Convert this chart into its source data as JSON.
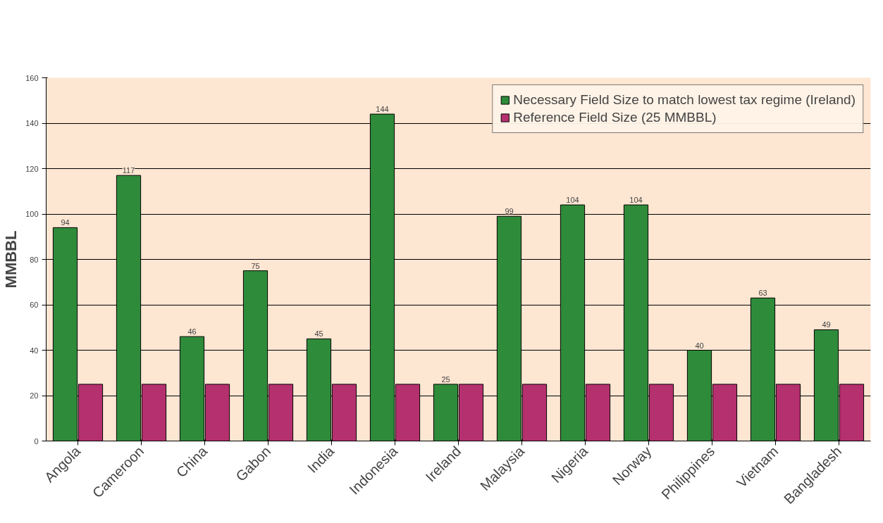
{
  "chart_data": {
    "type": "bar",
    "ylabel": "MMBBL",
    "categories": [
      "Angola",
      "Cameroon",
      "China",
      "Gabon",
      "India",
      "Indonesia",
      "Ireland",
      "Malaysia",
      "Nigeria",
      "Norway",
      "Philippines",
      "Vietnam",
      "Bangladesh"
    ],
    "series": [
      {
        "name": "Necessary Field Size to match lowest tax regime (Ireland)",
        "color": "#2e8b3a",
        "values": [
          94,
          117,
          46,
          75,
          45,
          144,
          25,
          99,
          104,
          104,
          40,
          63,
          49
        ],
        "value_labels": [
          "94",
          "117",
          "46",
          "75",
          "45",
          "144",
          "25",
          "99",
          "104",
          "104",
          "40",
          "63",
          "49"
        ]
      },
      {
        "name": "Reference Field Size (25 MMBBL)",
        "color": "#b5306e",
        "values": [
          25,
          25,
          25,
          25,
          25,
          25,
          25,
          25,
          25,
          25,
          25,
          25,
          25
        ]
      }
    ],
    "ylim": [
      0,
      160
    ],
    "yticks": [
      0,
      20,
      40,
      60,
      80,
      100,
      120,
      140,
      160
    ],
    "grid": "y",
    "legend": "top right"
  }
}
